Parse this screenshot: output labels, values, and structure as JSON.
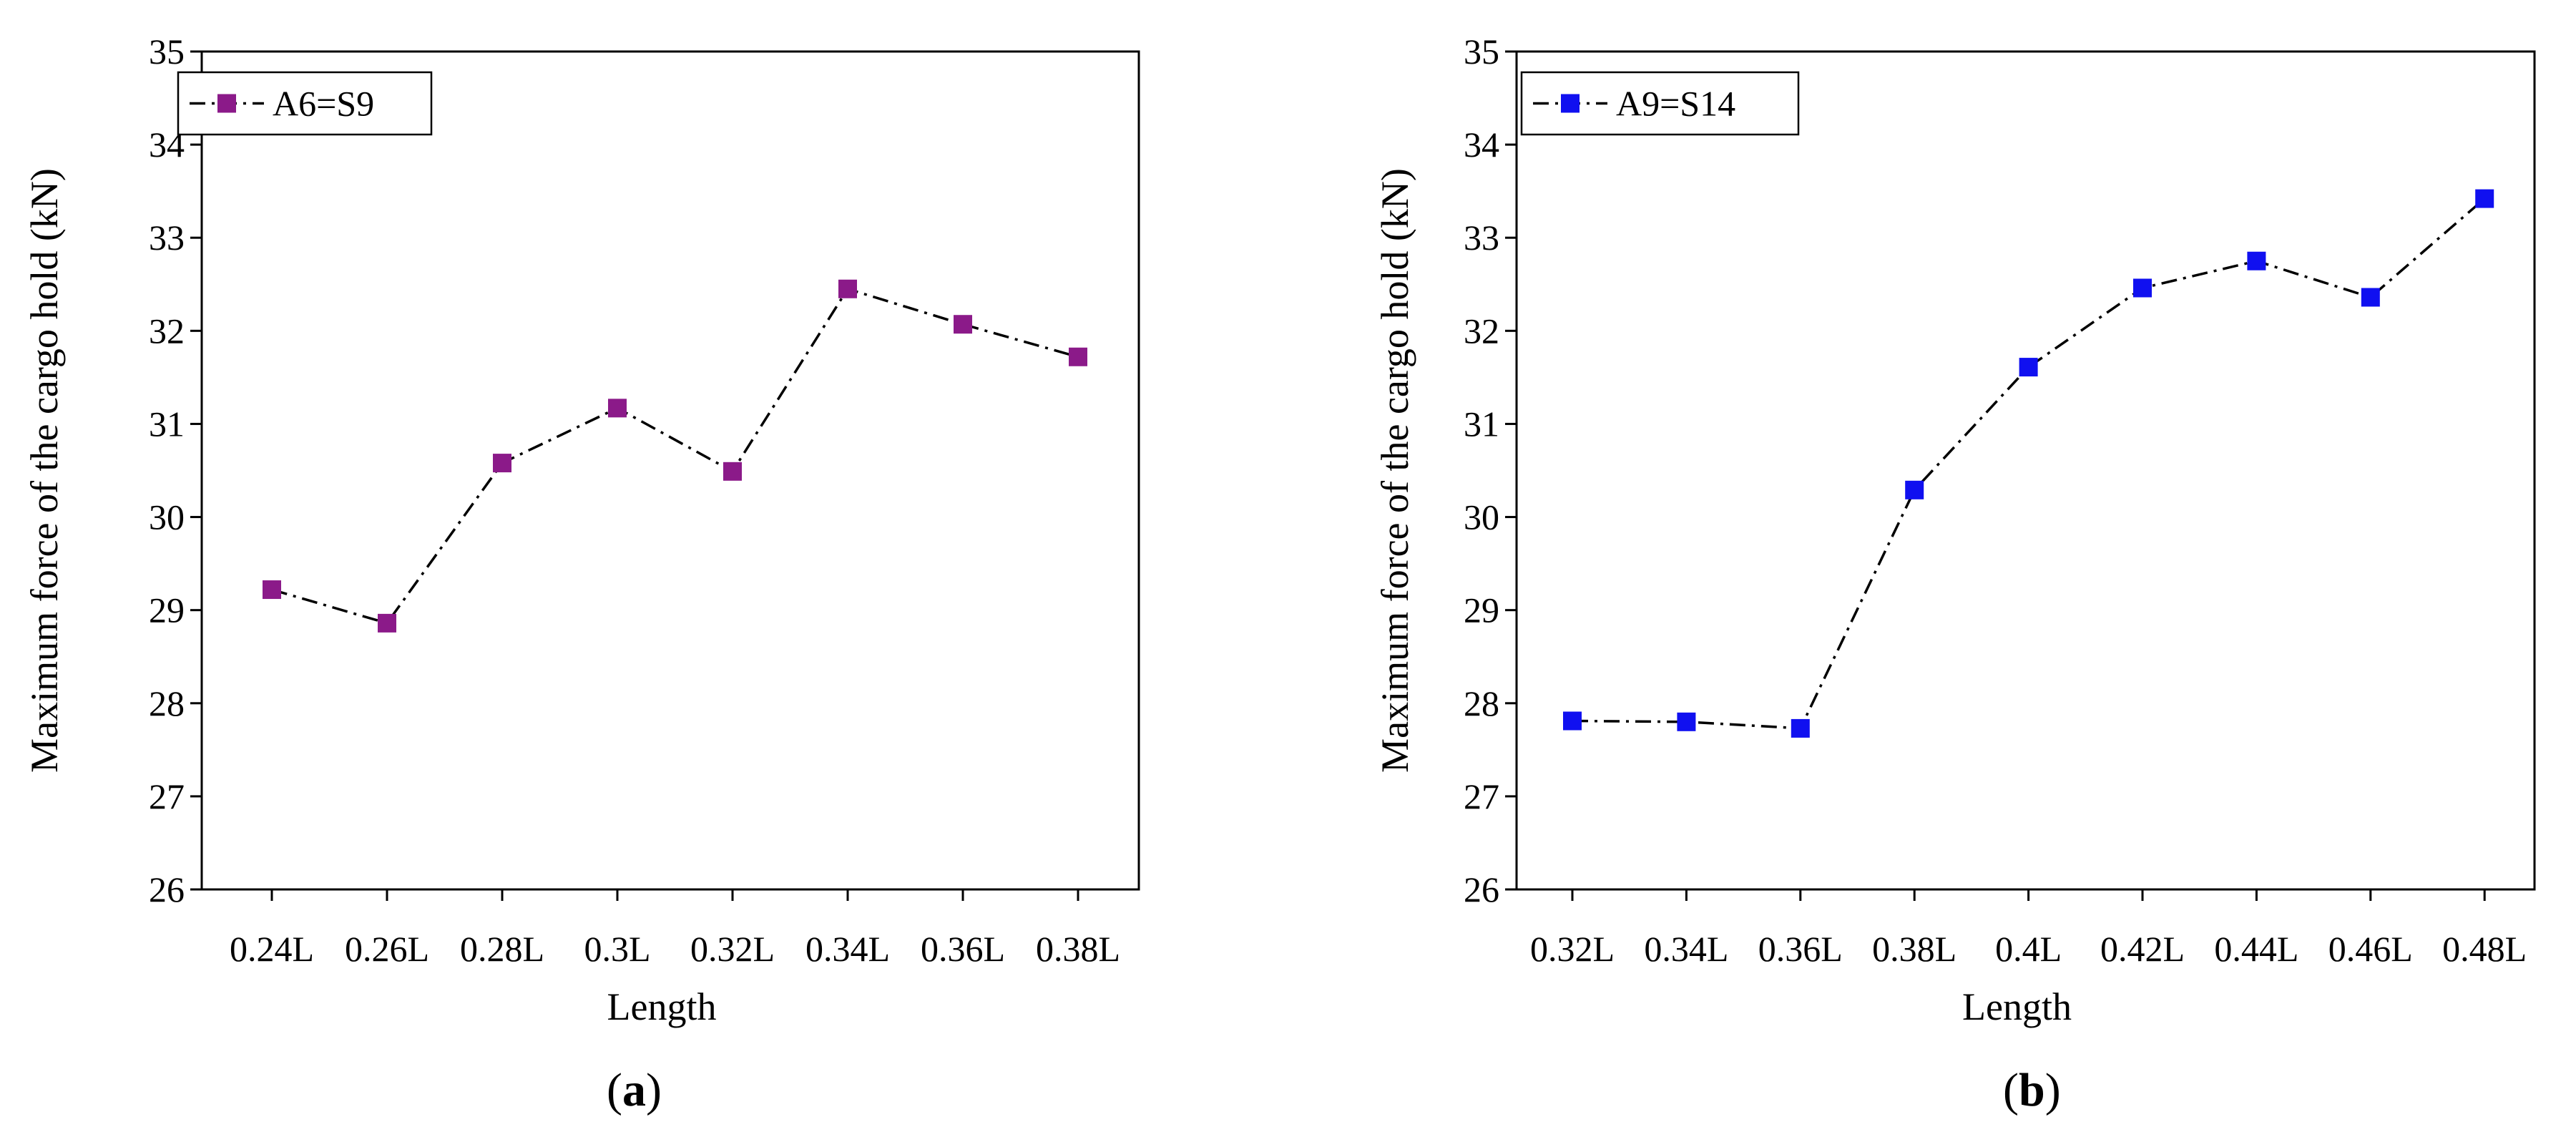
{
  "figure": {
    "background": "#ffffff",
    "axis_color": "#000000"
  },
  "chart_data": [
    {
      "id": "a",
      "type": "line",
      "panel_label": "(a)",
      "panel_label_parts": [
        "(",
        "a",
        ")"
      ],
      "xlabel": "Length",
      "ylabel": "Maximum force of the cargo hold (kN)",
      "ylim": [
        26,
        35
      ],
      "y_ticks": [
        26,
        27,
        28,
        29,
        30,
        31,
        32,
        33,
        34,
        35
      ],
      "grid": false,
      "legend_position": "top-left",
      "categories": [
        "0.24L",
        "0.26L",
        "0.28L",
        "0.3L",
        "0.32L",
        "0.34L",
        "0.36L",
        "0.38L"
      ],
      "series": [
        {
          "name": "A6=S9",
          "color": "#8b1a89",
          "marker": "square",
          "line_style": "dash-dot",
          "values": [
            29.22,
            28.86,
            30.58,
            31.17,
            30.49,
            32.45,
            32.07,
            31.72
          ]
        }
      ]
    },
    {
      "id": "b",
      "type": "line",
      "panel_label": "(b)",
      "panel_label_parts": [
        "(",
        "b",
        ")"
      ],
      "xlabel": "Length",
      "ylabel": "Maximum force of the cargo hold (kN)",
      "ylim": [
        26,
        35
      ],
      "y_ticks": [
        26,
        27,
        28,
        29,
        30,
        31,
        32,
        33,
        34,
        35
      ],
      "grid": false,
      "legend_position": "top-left",
      "categories": [
        "0.32L",
        "0.34L",
        "0.36L",
        "0.38L",
        "0.4L",
        "0.42L",
        "0.44L",
        "0.46L",
        "0.48L"
      ],
      "series": [
        {
          "name": "A9=S14",
          "color": "#1010f0",
          "marker": "square",
          "line_style": "dash-dot",
          "values": [
            27.81,
            27.8,
            27.73,
            30.29,
            31.61,
            32.46,
            32.75,
            32.36,
            33.42
          ]
        }
      ]
    }
  ]
}
